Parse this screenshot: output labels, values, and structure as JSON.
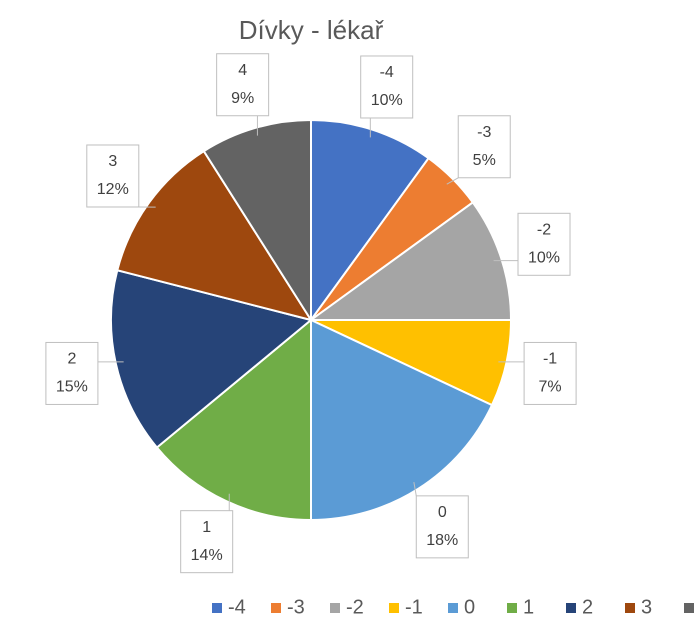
{
  "chart_data": {
    "type": "pie",
    "title": "Dívky - lékař",
    "categories": [
      "-4",
      "-3",
      "-2",
      "-1",
      "0",
      "1",
      "2",
      "3",
      "4"
    ],
    "values": [
      10,
      5,
      10,
      7,
      18,
      14,
      15,
      12,
      9
    ],
    "value_labels": [
      "10%",
      "5%",
      "10%",
      "7%",
      "18%",
      "14%",
      "15%",
      "12%",
      "9%"
    ],
    "colors": [
      "#4472c4",
      "#ed7d31",
      "#a5a5a5",
      "#ffc000",
      "#5b9bd5",
      "#70ad47",
      "#264478",
      "#9e480e",
      "#636363"
    ],
    "legend": "bottom"
  }
}
